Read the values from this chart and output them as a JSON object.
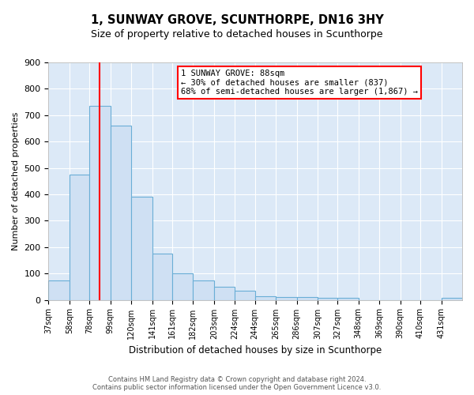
{
  "title": "1, SUNWAY GROVE, SCUNTHORPE, DN16 3HY",
  "subtitle": "Size of property relative to detached houses in Scunthorpe",
  "xlabel": "Distribution of detached houses by size in Scunthorpe",
  "ylabel": "Number of detached properties",
  "bar_color": "#cfe0f3",
  "bar_edge_color": "#6aaed6",
  "plot_bg_color": "#dce9f7",
  "grid_color": "#ffffff",
  "fig_bg_color": "#ffffff",
  "red_line_x": 88,
  "annotation_line1": "1 SUNWAY GROVE: 88sqm",
  "annotation_line2": "← 30% of detached houses are smaller (837)",
  "annotation_line3": "68% of semi-detached houses are larger (1,867) →",
  "bin_edges": [
    37,
    58,
    78,
    99,
    120,
    141,
    161,
    182,
    203,
    224,
    244,
    265,
    286,
    307,
    327,
    348,
    369,
    390,
    410,
    431,
    452
  ],
  "bar_heights": [
    75,
    475,
    735,
    660,
    390,
    175,
    100,
    75,
    50,
    35,
    13,
    10,
    10,
    8,
    7,
    0,
    0,
    0,
    0,
    8
  ],
  "ylim": [
    0,
    900
  ],
  "yticks": [
    0,
    100,
    200,
    300,
    400,
    500,
    600,
    700,
    800,
    900
  ],
  "footer1": "Contains HM Land Registry data © Crown copyright and database right 2024.",
  "footer2": "Contains public sector information licensed under the Open Government Licence v3.0."
}
